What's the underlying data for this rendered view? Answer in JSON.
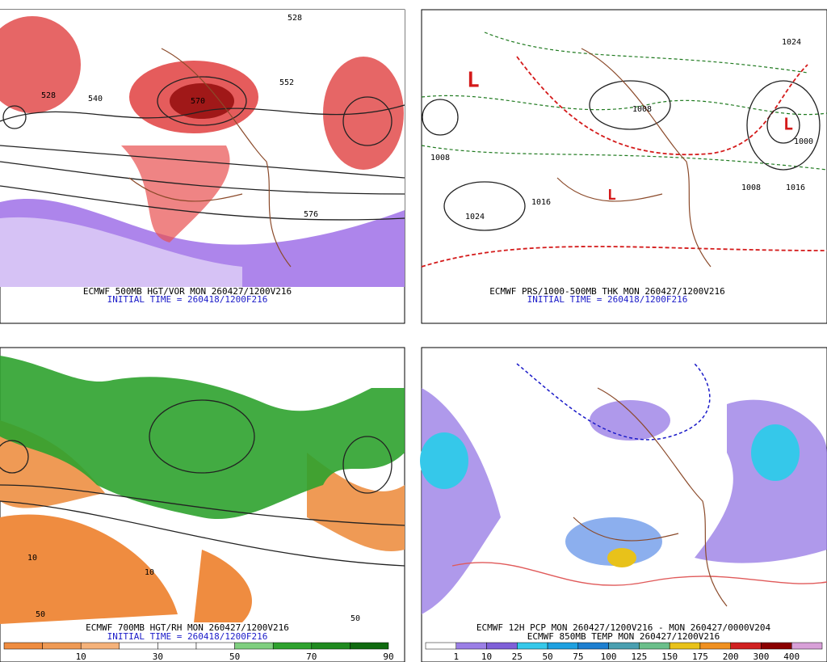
{
  "panels": [
    {
      "caption": "ECMWF 500MB HGT/VOR MON 260427/1200V216",
      "initial_time": "INITIAL TIME = 260418/1200F216",
      "map_labels": [
        "528",
        "540",
        "576",
        "552",
        "570",
        "528"
      ]
    },
    {
      "caption": "ECMWF PRS/1000-500MB THK MON 260427/1200V216",
      "initial_time": "INITIAL TIME = 260418/1200F216",
      "map_labels": [
        "1008",
        "1024",
        "1016",
        "1008",
        "1000",
        "1024",
        "1016",
        "1008"
      ]
    },
    {
      "caption": "ECMWF 700MB HGT/RH MON 260427/1200V216",
      "initial_time": "INITIAL TIME = 260418/1200F216",
      "map_labels": [
        "10",
        "50",
        "10",
        "50"
      ],
      "colorbar": [
        "10",
        "30",
        "50",
        "70",
        "90"
      ]
    },
    {
      "caption": "ECMWF 12H PCP MON 260427/1200V216 - MON 260427/0000V204",
      "initial_time": "ECMWF 850MB TEMP MON 260427/1200V216",
      "colorbar": [
        "1",
        "10",
        "25",
        "50",
        "75",
        "100",
        "125",
        "150",
        "175",
        "200",
        "300",
        "400"
      ]
    }
  ]
}
